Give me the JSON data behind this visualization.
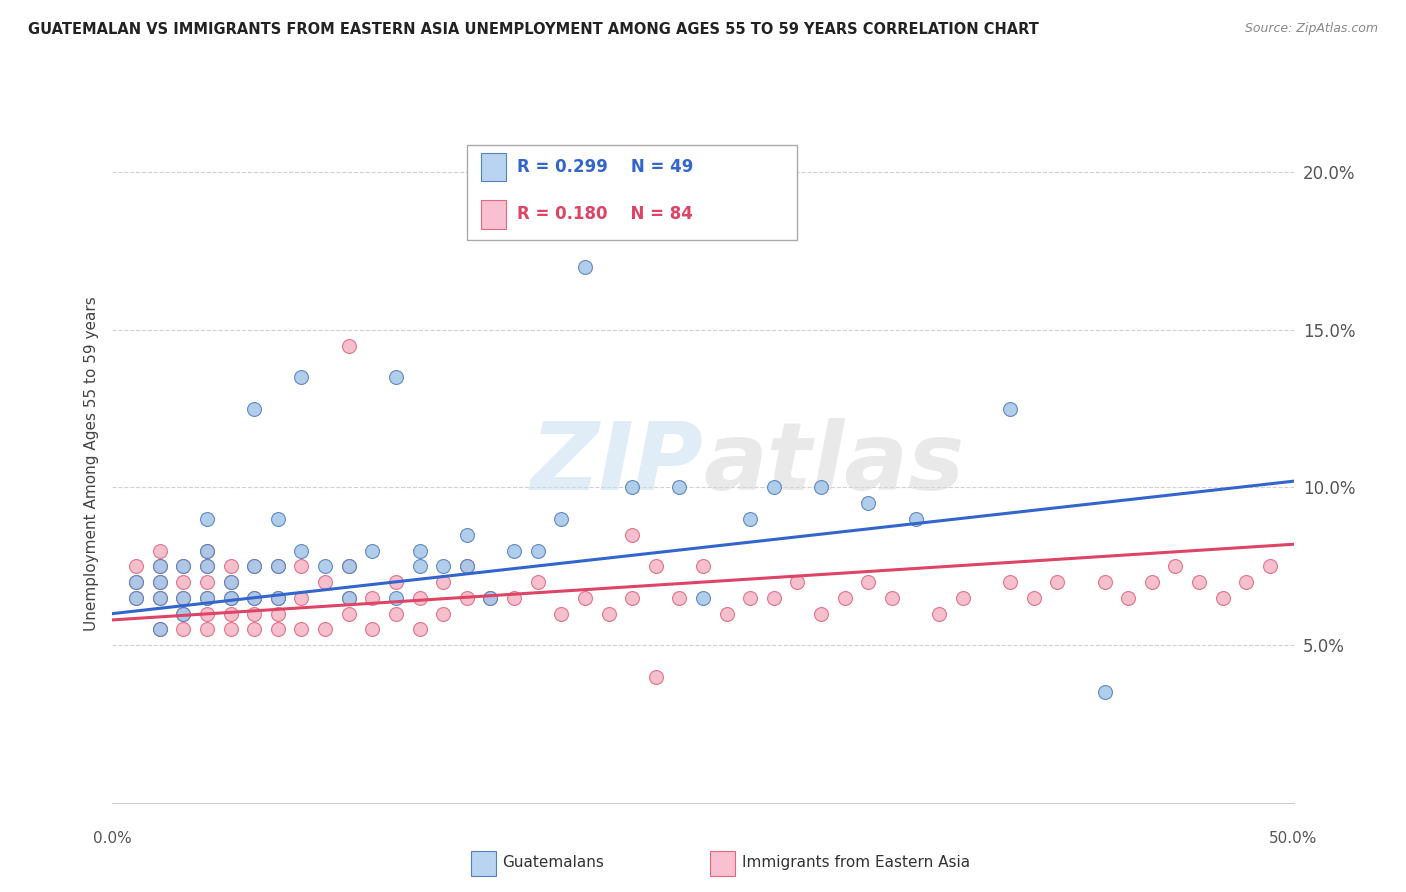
{
  "title": "GUATEMALAN VS IMMIGRANTS FROM EASTERN ASIA UNEMPLOYMENT AMONG AGES 55 TO 59 YEARS CORRELATION CHART",
  "source": "Source: ZipAtlas.com",
  "ylabel": "Unemployment Among Ages 55 to 59 years",
  "xmin": 0.0,
  "xmax": 0.5,
  "ymin": 0.0,
  "ymax": 0.215,
  "yticks": [
    0.05,
    0.1,
    0.15,
    0.2
  ],
  "ytick_labels": [
    "5.0%",
    "10.0%",
    "15.0%",
    "20.0%"
  ],
  "legend_r_blue": "R = 0.299",
  "legend_n_blue": "N = 49",
  "legend_r_pink": "R = 0.180",
  "legend_n_pink": "N = 84",
  "watermark": "ZIPatlas",
  "blue_scatter_x": [
    0.01,
    0.01,
    0.02,
    0.02,
    0.02,
    0.02,
    0.03,
    0.03,
    0.03,
    0.04,
    0.04,
    0.04,
    0.04,
    0.05,
    0.05,
    0.06,
    0.06,
    0.06,
    0.07,
    0.07,
    0.07,
    0.08,
    0.08,
    0.09,
    0.1,
    0.1,
    0.11,
    0.12,
    0.12,
    0.13,
    0.13,
    0.14,
    0.15,
    0.15,
    0.16,
    0.17,
    0.18,
    0.19,
    0.2,
    0.22,
    0.24,
    0.25,
    0.27,
    0.28,
    0.3,
    0.32,
    0.34,
    0.38,
    0.42
  ],
  "blue_scatter_y": [
    0.065,
    0.07,
    0.055,
    0.065,
    0.07,
    0.075,
    0.06,
    0.065,
    0.075,
    0.065,
    0.075,
    0.08,
    0.09,
    0.065,
    0.07,
    0.065,
    0.075,
    0.125,
    0.065,
    0.075,
    0.09,
    0.08,
    0.135,
    0.075,
    0.065,
    0.075,
    0.08,
    0.065,
    0.135,
    0.075,
    0.08,
    0.075,
    0.075,
    0.085,
    0.065,
    0.08,
    0.08,
    0.09,
    0.17,
    0.1,
    0.1,
    0.065,
    0.09,
    0.1,
    0.1,
    0.095,
    0.09,
    0.125,
    0.035
  ],
  "pink_scatter_x": [
    0.01,
    0.01,
    0.01,
    0.02,
    0.02,
    0.02,
    0.02,
    0.02,
    0.03,
    0.03,
    0.03,
    0.03,
    0.03,
    0.04,
    0.04,
    0.04,
    0.04,
    0.04,
    0.04,
    0.05,
    0.05,
    0.05,
    0.05,
    0.05,
    0.06,
    0.06,
    0.06,
    0.06,
    0.07,
    0.07,
    0.07,
    0.07,
    0.08,
    0.08,
    0.08,
    0.09,
    0.09,
    0.1,
    0.1,
    0.1,
    0.11,
    0.11,
    0.12,
    0.12,
    0.13,
    0.13,
    0.14,
    0.14,
    0.15,
    0.15,
    0.16,
    0.17,
    0.18,
    0.19,
    0.2,
    0.21,
    0.22,
    0.22,
    0.23,
    0.24,
    0.25,
    0.26,
    0.27,
    0.28,
    0.29,
    0.3,
    0.31,
    0.32,
    0.33,
    0.35,
    0.36,
    0.38,
    0.39,
    0.4,
    0.42,
    0.43,
    0.44,
    0.45,
    0.46,
    0.47,
    0.48,
    0.49,
    0.1,
    0.23
  ],
  "pink_scatter_y": [
    0.065,
    0.07,
    0.075,
    0.055,
    0.065,
    0.07,
    0.075,
    0.08,
    0.055,
    0.06,
    0.065,
    0.07,
    0.075,
    0.055,
    0.06,
    0.065,
    0.07,
    0.075,
    0.08,
    0.055,
    0.06,
    0.065,
    0.07,
    0.075,
    0.055,
    0.06,
    0.065,
    0.075,
    0.055,
    0.06,
    0.065,
    0.075,
    0.055,
    0.065,
    0.075,
    0.055,
    0.07,
    0.06,
    0.065,
    0.075,
    0.055,
    0.065,
    0.06,
    0.07,
    0.055,
    0.065,
    0.06,
    0.07,
    0.065,
    0.075,
    0.065,
    0.065,
    0.07,
    0.06,
    0.065,
    0.06,
    0.065,
    0.085,
    0.075,
    0.065,
    0.075,
    0.06,
    0.065,
    0.065,
    0.07,
    0.06,
    0.065,
    0.07,
    0.065,
    0.06,
    0.065,
    0.07,
    0.065,
    0.07,
    0.07,
    0.065,
    0.07,
    0.075,
    0.07,
    0.065,
    0.07,
    0.075,
    0.145,
    0.04
  ],
  "blue_line_x": [
    0.0,
    0.5
  ],
  "blue_line_y": [
    0.06,
    0.102
  ],
  "pink_line_x": [
    0.0,
    0.5
  ],
  "pink_line_y": [
    0.058,
    0.082
  ],
  "blue_color": "#a8c8e8",
  "pink_color": "#f5b8c8",
  "blue_edge_color": "#5580c0",
  "pink_edge_color": "#e06880",
  "blue_line_color": "#3366cc",
  "pink_line_color": "#dd4466",
  "legend_blue_fill": "#b8d4f0",
  "legend_pink_fill": "#f8c0d0",
  "background_color": "#ffffff",
  "grid_color": "#d0d0d0"
}
